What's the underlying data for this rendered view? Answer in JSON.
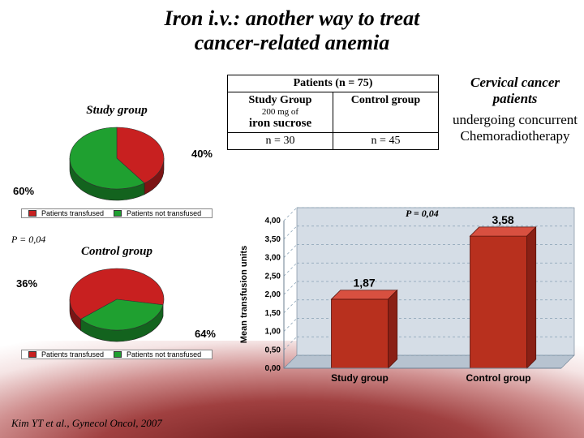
{
  "title_line1": "Iron i.v.: another way to treat",
  "title_line2": "cancer-related anemia",
  "table": {
    "header": "Patients (n = 75)",
    "col1_title": "Study Group",
    "col1_sub": "200 mg of",
    "col1_sucrose": "iron sucrose",
    "col2_title": "Control group",
    "row_n1": "n = 30",
    "row_n2": "n = 45"
  },
  "side": {
    "line1": "Cervical cancer patients",
    "line2": "undergoing concurrent Chemoradiotherapy"
  },
  "pie1": {
    "title": "Study group",
    "pct_red": 40,
    "pct_green": 60,
    "label_red": "40%",
    "label_green": "60%",
    "color_red": "#c82020",
    "color_green": "#1fa030",
    "legend_red": "Patients transfused",
    "legend_green": "Patients not transfused"
  },
  "pie2": {
    "title": "Control group",
    "pct_red": 64,
    "pct_green": 36,
    "label_red": "64%",
    "label_green": "36%",
    "color_red": "#c82020",
    "color_green": "#1fa030",
    "legend_red": "Patients transfused",
    "legend_green": "Patients not transfused"
  },
  "pval_left": "P = 0,04",
  "pval_bar": "P = 0,04",
  "bar": {
    "ylabel": "Mean transfusion units",
    "x1": "Study group",
    "x2": "Control group",
    "v1": 1.87,
    "v2": 3.58,
    "v1_label": "1,87",
    "v2_label": "3,58",
    "ymax": 4.0,
    "ticks": [
      "0,00",
      "0,50",
      "1,00",
      "1,50",
      "2,00",
      "2,50",
      "3,00",
      "3,50",
      "4,00"
    ],
    "front_color": "#b8301e",
    "top_color": "#d85040",
    "side_color": "#8a2015",
    "grid_color": "#87a0b4",
    "bg_color": "#d5dde6"
  },
  "citation": "Kim YT et al., Gynecol Oncol, 2007"
}
